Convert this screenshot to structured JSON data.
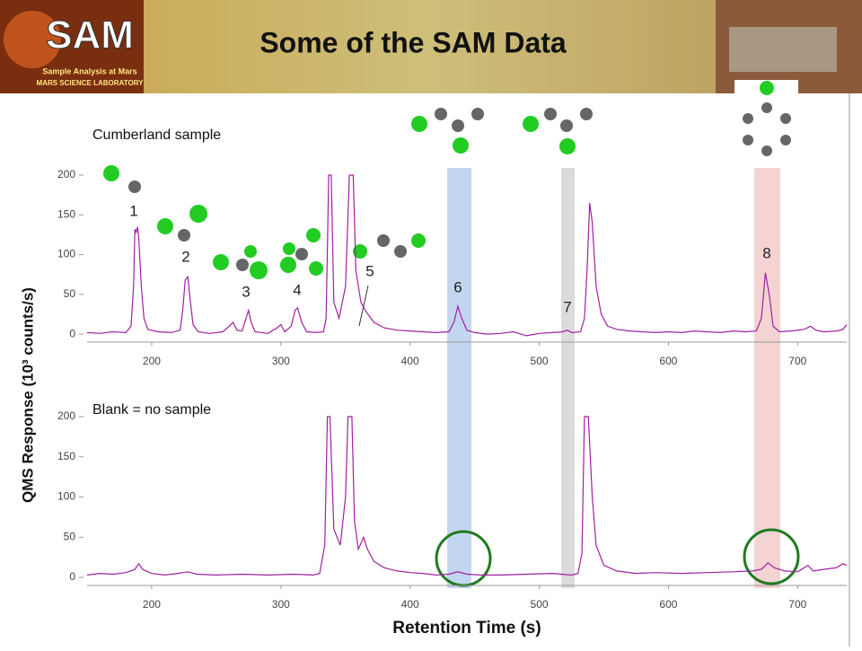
{
  "title": "Some of the SAM Data",
  "logo": {
    "name": "SAM",
    "line1": "Sample Analysis at Mars",
    "line2": "MARS SCIENCE LABORATORY"
  },
  "y_axis_label": "QMS Response (10³ counts/s)",
  "x_axis_label": "Retention Time (s)",
  "chart_data": [
    {
      "type": "line",
      "annotation": "Cumberland  sample",
      "peak_labels": [
        "1",
        "2",
        "3",
        "4",
        "5",
        "6",
        "7",
        "8"
      ],
      "color": "#a020a0",
      "xlim": [
        150,
        738
      ],
      "ylim": [
        -10,
        200
      ],
      "xticks": [
        200,
        300,
        400,
        500,
        600,
        700
      ],
      "yticks": [
        0,
        50,
        100,
        150,
        200
      ],
      "x": [
        150,
        160,
        170,
        180,
        184,
        186,
        187,
        188,
        189,
        190,
        192,
        194,
        197,
        205,
        215,
        222,
        224,
        226,
        228,
        230,
        232,
        236,
        245,
        255,
        260,
        263,
        266,
        270,
        273,
        275,
        277,
        280,
        290,
        297,
        300,
        303,
        308,
        311,
        313,
        316,
        320,
        328,
        333,
        335,
        337,
        339,
        341,
        345,
        350,
        353,
        356,
        358,
        362,
        366,
        372,
        380,
        390,
        400,
        410,
        420,
        430,
        434,
        437,
        440,
        444,
        450,
        460,
        470,
        480,
        490,
        500,
        510,
        518,
        522,
        525,
        532,
        535,
        537,
        539,
        541,
        544,
        548,
        553,
        560,
        570,
        580,
        590,
        600,
        610,
        620,
        630,
        640,
        650,
        660,
        668,
        672,
        675,
        678,
        681,
        686,
        695,
        705,
        710,
        714,
        720,
        730,
        735,
        738
      ],
      "values": [
        2,
        1,
        3,
        2,
        10,
        60,
        132,
        128,
        135,
        120,
        60,
        20,
        6,
        3,
        2,
        5,
        30,
        68,
        72,
        40,
        12,
        3,
        1,
        3,
        10,
        15,
        5,
        4,
        20,
        30,
        15,
        3,
        1,
        8,
        12,
        3,
        10,
        30,
        33,
        15,
        3,
        2,
        3,
        20,
        200,
        200,
        40,
        20,
        60,
        200,
        200,
        80,
        40,
        28,
        15,
        8,
        5,
        4,
        3,
        2,
        3,
        15,
        35,
        20,
        5,
        2,
        0,
        1,
        3,
        -2,
        1,
        2,
        3,
        5,
        2,
        3,
        20,
        80,
        165,
        140,
        60,
        25,
        10,
        6,
        4,
        3,
        2,
        3,
        2,
        4,
        3,
        2,
        4,
        3,
        4,
        20,
        77,
        50,
        10,
        3,
        4,
        6,
        10,
        5,
        3,
        4,
        6,
        12
      ]
    },
    {
      "type": "line",
      "annotation": "Blank = no sample",
      "color": "#a020a0",
      "xlim": [
        150,
        738
      ],
      "ylim": [
        -10,
        200
      ],
      "xticks": [
        200,
        300,
        400,
        500,
        600,
        700
      ],
      "yticks": [
        0,
        50,
        100,
        150,
        200
      ],
      "x": [
        150,
        160,
        170,
        180,
        187,
        190,
        193,
        200,
        210,
        220,
        228,
        235,
        250,
        270,
        290,
        310,
        325,
        330,
        334,
        336,
        338,
        341,
        346,
        350,
        352,
        355,
        357,
        360,
        364,
        367,
        372,
        380,
        390,
        400,
        410,
        420,
        430,
        437,
        444,
        455,
        470,
        490,
        510,
        525,
        530,
        533,
        535,
        537,
        538,
        541,
        544,
        550,
        560,
        575,
        590,
        610,
        630,
        650,
        665,
        672,
        677,
        682,
        690,
        700,
        708,
        712,
        720,
        730,
        735,
        738
      ],
      "values": [
        3,
        5,
        4,
        6,
        10,
        17,
        10,
        5,
        3,
        5,
        7,
        4,
        3,
        4,
        3,
        4,
        3,
        5,
        40,
        200,
        200,
        60,
        40,
        100,
        200,
        200,
        70,
        35,
        50,
        35,
        20,
        12,
        8,
        6,
        5,
        3,
        4,
        7,
        4,
        3,
        3,
        4,
        5,
        3,
        5,
        30,
        200,
        200,
        200,
        100,
        40,
        15,
        8,
        5,
        6,
        5,
        6,
        7,
        8,
        10,
        18,
        12,
        8,
        7,
        15,
        8,
        10,
        12,
        17,
        15
      ]
    }
  ]
}
